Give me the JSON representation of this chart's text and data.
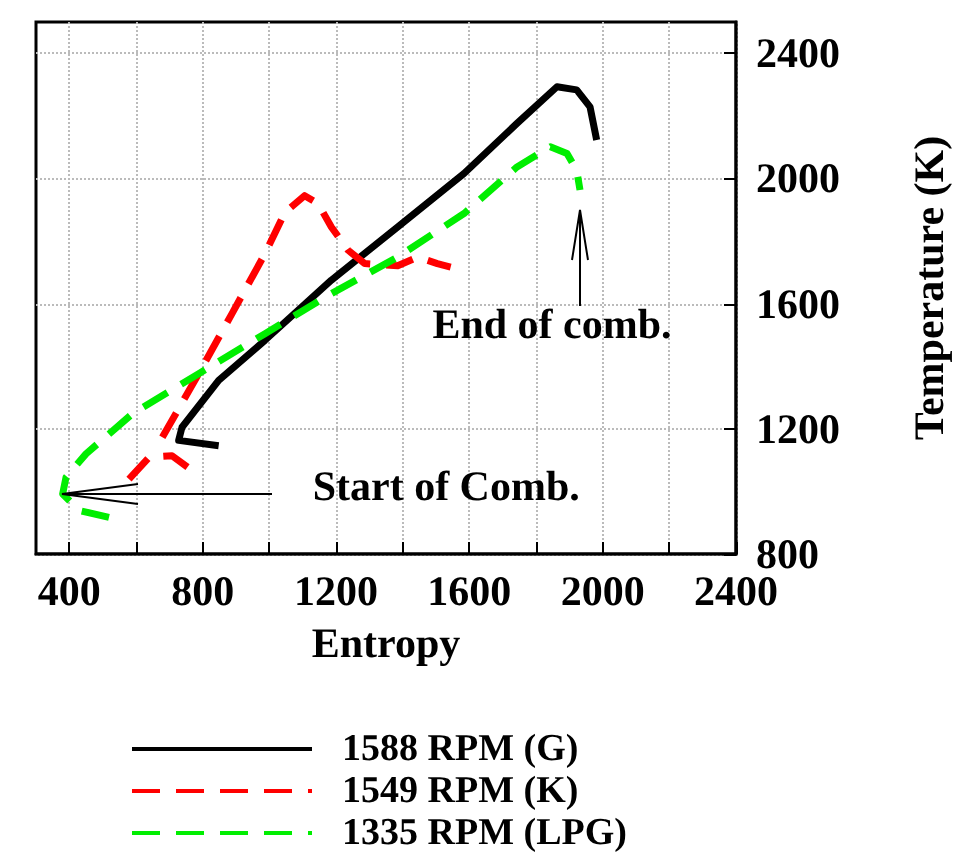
{
  "chart_data": {
    "type": "line",
    "xlabel": "Entropy",
    "ylabel": "Temperature (K)",
    "xlim": [
      300,
      2400
    ],
    "ylim": [
      800,
      2500
    ],
    "xticks": [
      400,
      {
        "value": 600,
        "label": null
      },
      800,
      {
        "value": 1000,
        "label": null
      },
      1200,
      {
        "value": 1400,
        "label": null
      },
      1600,
      {
        "value": 1800,
        "label": null
      },
      2000,
      {
        "value": 2200,
        "label": null
      },
      2400
    ],
    "yticks": [
      800,
      1200,
      1600,
      2000,
      2400
    ],
    "grid": true,
    "legend": "bottom",
    "marker": "none",
    "annotations": [
      {
        "text": "End of comb.",
        "x": 1932,
        "y": 1963
      },
      {
        "text": "Start of Comb.",
        "x": 380,
        "y": 992
      }
    ],
    "series": [
      {
        "name": "1588 RPM (G)",
        "color": "#000000",
        "line_style": "solid",
        "x": [
          848,
          728,
          738,
          848,
          987,
          1186,
          1385,
          1584,
          1743,
          1863,
          1922,
          1962,
          1982
        ],
        "values": [
          1146,
          1163,
          1205,
          1355,
          1483,
          1675,
          1845,
          2016,
          2176,
          2293,
          2283,
          2229,
          2123
        ]
      },
      {
        "name": "1549 RPM (K)",
        "color": "#ff0000",
        "line_style": "dashed",
        "x": [
          579,
          639,
          708,
          768,
          700,
          679,
          788,
          888,
          987,
          1047,
          1106,
          1146,
          1186,
          1236,
          1286,
          1385,
          1445,
          1504,
          1544
        ],
        "values": [
          1039,
          1109,
          1114,
          1067,
          null,
          1173,
          1376,
          1568,
          1760,
          1892,
          1945,
          1920,
          1845,
          1771,
          1728,
          1721,
          1749,
          1728,
          1717
        ]
      },
      {
        "name": "1335 RPM (LPG)",
        "color": "#00ee00",
        "line_style": "dashed",
        "x": [
          519,
          430,
          380,
          390,
          450,
          589,
          788,
          987,
          1186,
          1385,
          1584,
          1743,
          1843,
          1893,
          1922,
          1932
        ],
        "values": [
          917,
          939,
          992,
          1045,
          1120,
          1248,
          1376,
          1504,
          1632,
          1749,
          1888,
          2037,
          2101,
          2080,
          2027,
          1963
        ]
      }
    ]
  }
}
